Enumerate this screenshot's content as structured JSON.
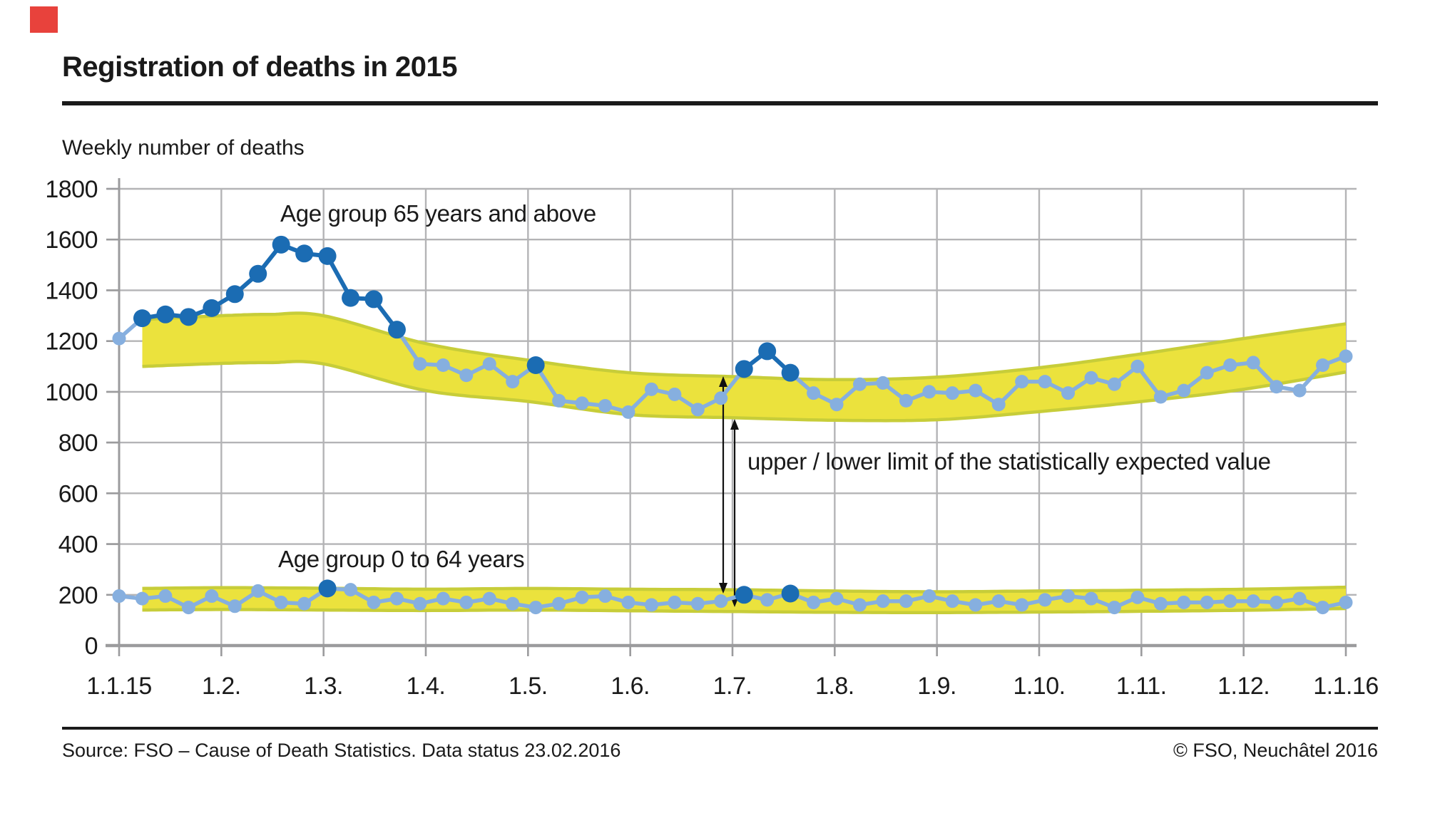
{
  "page": {
    "title": "Registration of deaths in 2015",
    "subtitle": "Weekly number of deaths"
  },
  "footer": {
    "source": "Source: FSO – Cause of Death Statistics. Data status 23.02.2016",
    "copyright": "© FSO, Neuchâtel 2016"
  },
  "colors": {
    "dark_blue": "#1b6cb3",
    "light_blue": "#86afdf",
    "band_fill": "#ebe23d",
    "band_edge": "#c7cd39",
    "grid": "#b4b4b6",
    "axis": "#9b9b9d",
    "text": "#1a1a1a",
    "logo_red": "#e8423c"
  },
  "chart_data": {
    "type": "line",
    "title": "Registration of deaths in 2015",
    "ylabel": "Weekly number of deaths",
    "ylim": [
      0,
      1800
    ],
    "ytick_values": [
      0,
      200,
      400,
      600,
      800,
      1000,
      1200,
      1400,
      1600,
      1800
    ],
    "xtick_labels": [
      "1.1.15",
      "1.2.",
      "1.3.",
      "1.4.",
      "1.5.",
      "1.6.",
      "1.7.",
      "1.8.",
      "1.9.",
      "1.10.",
      "1.11.",
      "1.12.",
      "1.1.16"
    ],
    "grid": true,
    "legend_position": "inline-annotations",
    "series": [
      {
        "name": "Age group 65 years and above",
        "point_color_normal": "light_blue",
        "point_color_highlight": "dark_blue",
        "values": [
          1210,
          1290,
          1305,
          1295,
          1330,
          1385,
          1465,
          1580,
          1545,
          1535,
          1370,
          1365,
          1245,
          1110,
          1105,
          1065,
          1110,
          1040,
          1105,
          965,
          955,
          945,
          920,
          1010,
          990,
          930,
          975,
          1090,
          1160,
          1075,
          995,
          950,
          1030,
          1035,
          965,
          1000,
          995,
          1005,
          950,
          1040,
          1040,
          995,
          1055,
          1030,
          1100,
          980,
          1005,
          1075,
          1105,
          1115,
          1020,
          1005,
          1105,
          1140
        ],
        "highlighted_points": [
          1,
          2,
          3,
          4,
          5,
          6,
          7,
          8,
          9,
          10,
          11,
          12,
          18,
          27,
          28,
          29
        ]
      },
      {
        "name": "Age group 0 to 64 years",
        "point_color_normal": "light_blue",
        "point_color_highlight": "dark_blue",
        "values": [
          195,
          185,
          195,
          150,
          195,
          155,
          215,
          170,
          165,
          225,
          220,
          170,
          185,
          165,
          185,
          170,
          185,
          165,
          150,
          165,
          190,
          195,
          170,
          160,
          170,
          165,
          175,
          200,
          180,
          205,
          170,
          185,
          160,
          175,
          175,
          195,
          175,
          160,
          175,
          160,
          180,
          195,
          185,
          150,
          190,
          165,
          170,
          170,
          175,
          175,
          170,
          185,
          150,
          170
        ],
        "highlighted_points": [
          9,
          27,
          29
        ]
      }
    ],
    "bands": [
      {
        "name": "statistically expected range – 65 years and above",
        "x_index": [
          1,
          4.42,
          6.5,
          8.83,
          13.25,
          17.66,
          22.08,
          26.5,
          30.9,
          35.33,
          39.75,
          44.2,
          48.58,
          53
        ],
        "upper": [
          1285,
          1300,
          1305,
          1300,
          1190,
          1125,
          1075,
          1060,
          1048,
          1058,
          1095,
          1150,
          1210,
          1268
        ],
        "lower": [
          1100,
          1112,
          1115,
          1110,
          1005,
          962,
          910,
          898,
          888,
          890,
          922,
          962,
          1010,
          1078
        ]
      },
      {
        "name": "statistically expected range – 0 to 64 years",
        "x_index": [
          1,
          4.42,
          8.83,
          13.25,
          17.66,
          22.08,
          26.5,
          30.9,
          35.33,
          39.75,
          44.2,
          48.58,
          53
        ],
        "upper": [
          225,
          228,
          226,
          222,
          225,
          222,
          220,
          215,
          212,
          215,
          218,
          222,
          230
        ],
        "lower": [
          140,
          142,
          140,
          138,
          140,
          137,
          134,
          131,
          130,
          132,
          135,
          139,
          146
        ]
      }
    ],
    "annotations": {
      "series_65_label": "Age group 65 years and above",
      "series_064_label": "Age group 0 to 64 years",
      "band_label": "upper / lower limit of the statistically expected value"
    }
  }
}
